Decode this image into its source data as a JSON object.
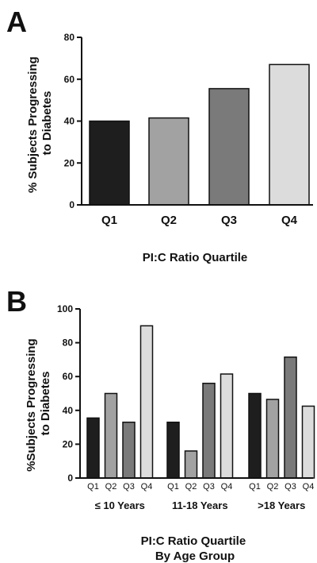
{
  "chart_data": [
    {
      "type": "bar",
      "panel": "A",
      "ylabel": [
        "% Subjects Progressing",
        "to Diabetes"
      ],
      "xlabel": "PI:C Ratio Quartile",
      "categories": [
        "Q1",
        "Q2",
        "Q3",
        "Q4"
      ],
      "values": [
        40,
        41.5,
        55.5,
        67
      ],
      "colors": [
        "#1e1e1e",
        "#a2a2a2",
        "#7a7a7a",
        "#dcdcdc"
      ],
      "ylim": [
        0,
        80
      ],
      "yticks": [
        0,
        20,
        40,
        60,
        80
      ],
      "grid": false
    },
    {
      "type": "bar",
      "panel": "B",
      "ylabel": [
        "%Subjects Progressing",
        "to Diabetes"
      ],
      "xlabel": [
        "PI:C Ratio Quartile",
        "By Age Group"
      ],
      "quartiles": [
        "Q1",
        "Q2",
        "Q3",
        "Q4"
      ],
      "groups": [
        {
          "name": "≤ 10 Years",
          "values": [
            35.5,
            50,
            33,
            90
          ]
        },
        {
          "name": "11-18 Years",
          "values": [
            33,
            16,
            56,
            61.5
          ]
        },
        {
          "name": ">18 Years",
          "values": [
            50,
            46.5,
            71.5,
            42.5
          ]
        }
      ],
      "colors": [
        "#1e1e1e",
        "#a2a2a2",
        "#7a7a7a",
        "#dcdcdc"
      ],
      "ylim": [
        0,
        100
      ],
      "yticks": [
        0,
        20,
        40,
        60,
        80,
        100
      ],
      "grid": false
    }
  ]
}
